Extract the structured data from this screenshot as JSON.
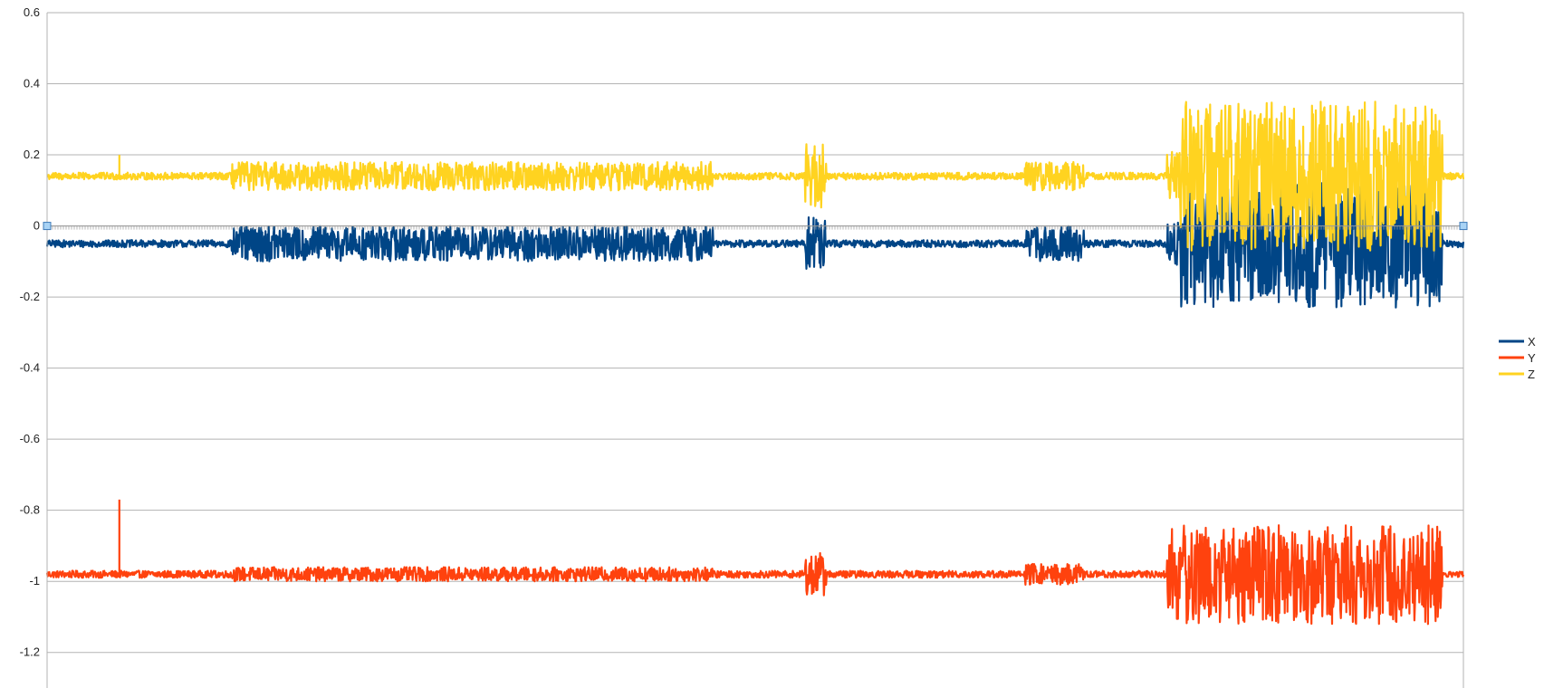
{
  "chart_data": {
    "type": "line",
    "title": "",
    "xlabel": "",
    "ylabel": "",
    "ylim": [
      -1.3,
      0.6
    ],
    "yticks": [
      0.6,
      0.4,
      0.2,
      0,
      -0.2,
      -0.4,
      -0.6,
      -0.8,
      -1,
      -1.2
    ],
    "ytick_labels": [
      "0.6",
      "0.4",
      "0.2",
      "0",
      "-0.2",
      "-0.4",
      "-0.6",
      "-0.8",
      "-1",
      "-1.2"
    ],
    "grid": true,
    "legend_position": "right",
    "x_range": [
      0,
      1000
    ],
    "series": [
      {
        "name": "X",
        "color": "#004586",
        "baseline": -0.05,
        "segments": [
          {
            "start": 0,
            "end": 130,
            "amp": 0.01
          },
          {
            "start": 130,
            "end": 470,
            "amp": 0.05
          },
          {
            "start": 470,
            "end": 535,
            "amp": 0.01
          },
          {
            "start": 535,
            "end": 550,
            "amp": 0.08
          },
          {
            "start": 550,
            "end": 690,
            "amp": 0.01
          },
          {
            "start": 690,
            "end": 732,
            "amp": 0.05
          },
          {
            "start": 732,
            "end": 790,
            "amp": 0.01
          },
          {
            "start": 790,
            "end": 800,
            "amp": 0.06
          },
          {
            "start": 800,
            "end": 985,
            "amp": 0.18
          },
          {
            "start": 985,
            "end": 1000,
            "amp": 0.01
          }
        ],
        "spikes": []
      },
      {
        "name": "Y",
        "color": "#ff420e",
        "baseline": -0.98,
        "segments": [
          {
            "start": 0,
            "end": 130,
            "amp": 0.01
          },
          {
            "start": 130,
            "end": 470,
            "amp": 0.02
          },
          {
            "start": 470,
            "end": 535,
            "amp": 0.01
          },
          {
            "start": 535,
            "end": 550,
            "amp": 0.06
          },
          {
            "start": 550,
            "end": 690,
            "amp": 0.01
          },
          {
            "start": 690,
            "end": 732,
            "amp": 0.03
          },
          {
            "start": 732,
            "end": 790,
            "amp": 0.01
          },
          {
            "start": 790,
            "end": 985,
            "amp": 0.14
          },
          {
            "start": 985,
            "end": 1000,
            "amp": 0.01
          }
        ],
        "spikes": [
          {
            "x": 51,
            "y": -0.77
          }
        ]
      },
      {
        "name": "Z",
        "color": "#ffd320",
        "baseline": 0.14,
        "segments": [
          {
            "start": 0,
            "end": 130,
            "amp": 0.01
          },
          {
            "start": 130,
            "end": 470,
            "amp": 0.04
          },
          {
            "start": 470,
            "end": 535,
            "amp": 0.01
          },
          {
            "start": 535,
            "end": 550,
            "amp": 0.09
          },
          {
            "start": 550,
            "end": 690,
            "amp": 0.01
          },
          {
            "start": 690,
            "end": 732,
            "amp": 0.04
          },
          {
            "start": 732,
            "end": 790,
            "amp": 0.01
          },
          {
            "start": 790,
            "end": 800,
            "amp": 0.07
          },
          {
            "start": 800,
            "end": 985,
            "amp": 0.21
          },
          {
            "start": 985,
            "end": 1000,
            "amp": 0.01
          }
        ],
        "spikes": [
          {
            "x": 51,
            "y": 0.2
          }
        ]
      }
    ]
  }
}
